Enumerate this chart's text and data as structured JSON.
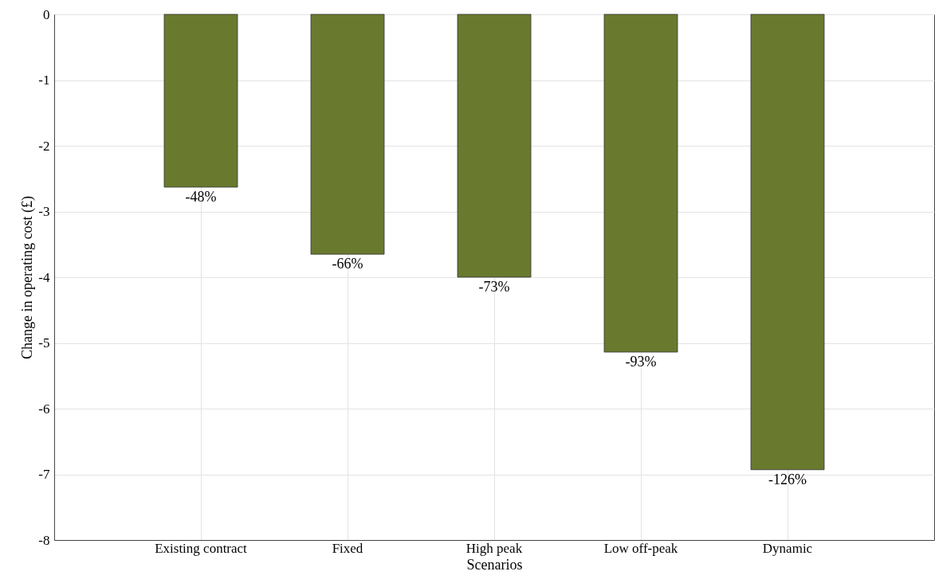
{
  "chart_data": {
    "type": "bar",
    "xlabel": "Scenarios",
    "ylabel": "Change in operating cost (£)",
    "categories": [
      "Existing contract",
      "Fixed",
      "High peak",
      "Low off-peak",
      "Dynamic"
    ],
    "values": [
      -2.63,
      -3.65,
      -4.0,
      -5.14,
      -6.93
    ],
    "annotations": [
      {
        "text": "-48%",
        "x": "Existing contract",
        "y": -2.63
      },
      {
        "text": "-66%",
        "x": "Fixed",
        "y": -3.65
      },
      {
        "text": "-73%",
        "x": "High peak",
        "y": -4.0
      },
      {
        "text": "-93%",
        "x": "Low off-peak",
        "y": -5.14
      },
      {
        "text": "-126%",
        "x": "Dynamic",
        "y": -6.93
      }
    ],
    "color": "#697a2e",
    "ylim": [
      -8,
      0
    ],
    "yticks": [
      -8,
      -7,
      -6,
      -5,
      -4,
      -3,
      -2,
      -1,
      0
    ],
    "grid": true
  }
}
